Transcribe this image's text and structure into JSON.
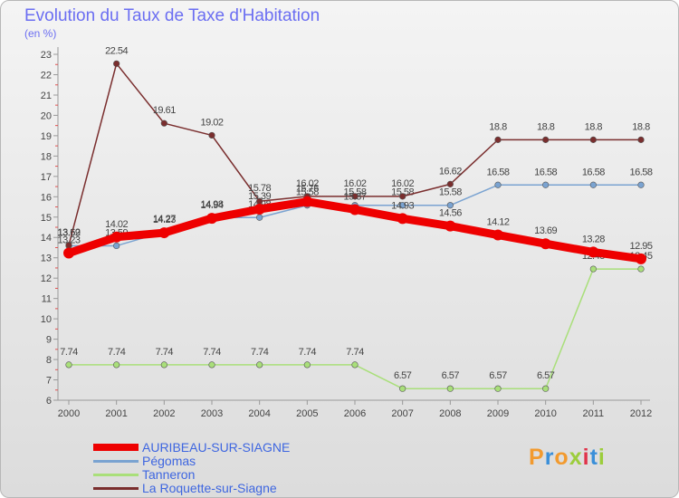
{
  "header": {
    "title": "Evolution du Taux de Taxe d'Habitation",
    "unit": "(en %)"
  },
  "brand": {
    "text": "Proxiti",
    "letter_colors": [
      "#f29a2e",
      "#3a8fd9",
      "#f29a2e",
      "#9ccd3c",
      "#e0334a",
      "#3a8fd9",
      "#9ccd3c"
    ]
  },
  "chart_data": {
    "type": "line",
    "title": "Evolution du Taux de Taxe d'Habitation",
    "subtitle": "(en %)",
    "x": [
      "2000",
      "2001",
      "2002",
      "2003",
      "2004",
      "2005",
      "2006",
      "2007",
      "2008",
      "2009",
      "2010",
      "2011",
      "2012"
    ],
    "ylim": [
      6,
      23
    ],
    "yticks": [
      6,
      7,
      8,
      9,
      10,
      11,
      12,
      13,
      14,
      15,
      16,
      17,
      18,
      19,
      20,
      21,
      22,
      23
    ],
    "grid": false,
    "series": [
      {
        "name": "AURIBEAU-SUR-SIAGNE",
        "color": "#ee0000",
        "emphasis": true,
        "values": [
          13.23,
          14.02,
          14.23,
          14.94,
          15.39,
          15.76,
          15.37,
          14.93,
          14.56,
          14.12,
          13.69,
          13.28,
          12.95
        ],
        "labels": [
          "13.23",
          "14.02",
          "14.23",
          "14.94",
          "15.39",
          "15.76",
          "15.37",
          "14.93",
          "14.56",
          "14.12",
          "13.69",
          "13.28",
          "12.95"
        ]
      },
      {
        "name": "Pégomas",
        "color": "#7aa3d1",
        "emphasis": false,
        "values": [
          13.59,
          13.59,
          14.27,
          14.98,
          14.98,
          15.58,
          15.58,
          15.58,
          15.58,
          16.58,
          16.58,
          16.58,
          16.58
        ],
        "labels": [
          "13.59",
          "13.59",
          "14.27",
          "14.98",
          "14.98",
          "15.58",
          "15.58",
          "15.58",
          "15.58",
          "16.58",
          "16.58",
          "16.58",
          "16.58"
        ]
      },
      {
        "name": "Tanneron",
        "color": "#a9df7a",
        "emphasis": false,
        "values": [
          7.74,
          7.74,
          7.74,
          7.74,
          7.74,
          7.74,
          7.74,
          6.57,
          6.57,
          6.57,
          6.57,
          12.45,
          12.45
        ],
        "labels": [
          "7.74",
          "7.74",
          "7.74",
          "7.74",
          "7.74",
          "7.74",
          "7.74",
          "6.57",
          "6.57",
          "6.57",
          "6.57",
          "12.45",
          "12.45"
        ]
      },
      {
        "name": "La Roquette-sur-Siagne",
        "color": "#7a2e2e",
        "emphasis": false,
        "values": [
          13.62,
          22.54,
          19.61,
          19.02,
          15.78,
          16.02,
          16.02,
          16.02,
          16.62,
          18.8,
          18.8,
          18.8,
          18.8
        ],
        "labels": [
          "13.62",
          "22.54",
          "19.61",
          "19.02",
          "15.78",
          "16.02",
          "16.02",
          "16.02",
          "16.62",
          "18.8",
          "18.8",
          "18.8",
          "18.8"
        ]
      }
    ]
  }
}
